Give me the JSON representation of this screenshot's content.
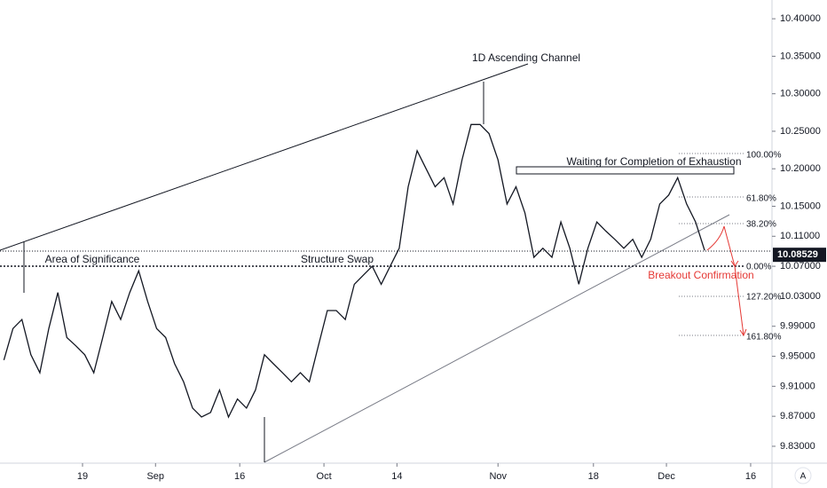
{
  "chart_data": {
    "type": "line",
    "x": [
      5,
      6.6,
      8.2,
      9.8,
      11.4,
      13,
      14.6,
      16.2,
      17.8,
      19.4,
      21,
      22.6,
      24.2,
      25.8,
      27.4,
      29,
      30.6,
      32.2,
      33.8,
      35.4,
      37,
      38.6,
      40.2,
      41.8,
      43.4,
      45,
      46.6,
      48.2,
      49.8,
      51.4,
      53,
      54.6,
      56.2,
      57.8,
      59.4,
      61,
      62.6,
      64.2,
      65.8,
      67.4,
      69,
      70.6,
      72.2,
      73.8,
      75.4,
      77,
      78.6,
      80.2,
      81.8,
      83.4,
      85,
      86.6,
      88.2,
      89.8,
      91.4,
      93,
      94.6,
      96.2,
      97.8,
      99.4,
      101,
      102.6,
      104.2,
      105.8,
      107.4,
      109,
      110.6,
      112.2,
      113.8,
      115.4,
      117,
      118.6,
      120.2,
      121.8,
      123.4,
      125,
      126.6,
      128.2,
      129.8
    ],
    "series": [
      {
        "color": "#131722",
        "values": [
          9.945,
          9.987,
          9.999,
          9.952,
          9.928,
          9.987,
          10.035,
          9.975,
          9.964,
          9.952,
          9.928,
          9.975,
          10.023,
          9.999,
          10.035,
          10.064,
          10.023,
          9.987,
          9.975,
          9.94,
          9.916,
          9.881,
          9.869,
          9.875,
          9.905,
          9.869,
          9.893,
          9.881,
          9.905,
          9.952,
          9.94,
          9.928,
          9.916,
          9.928,
          9.916,
          9.964,
          10.011,
          10.011,
          9.999,
          10.046,
          10.058,
          10.07,
          10.046,
          10.07,
          10.094,
          10.176,
          10.224,
          10.2,
          10.176,
          10.188,
          10.153,
          10.212,
          10.259,
          10.259,
          10.247,
          10.212,
          10.153,
          10.176,
          10.141,
          10.082,
          10.094,
          10.082,
          10.129,
          10.094,
          10.046,
          10.094,
          10.129,
          10.117,
          10.106,
          10.094,
          10.106,
          10.082,
          10.106,
          10.153,
          10.165,
          10.188,
          10.153,
          10.129,
          10.091
        ]
      }
    ],
    "xlim": [
      4.3,
      141.8
    ],
    "xticks": [
      19,
      {
        "value": 32,
        "label": "Sep"
      },
      {
        "value": 47,
        "label": "16"
      },
      {
        "value": 62,
        "label": "Oct"
      },
      {
        "value": 75,
        "label": "14"
      },
      {
        "value": 93,
        "label": "Nov"
      },
      {
        "value": 110,
        "label": "18"
      },
      {
        "value": 123,
        "label": "Dec"
      },
      {
        "value": 138,
        "label": "16"
      }
    ],
    "ylim": [
      9.8075,
      10.425
    ],
    "yticks": [
      {
        "value": 10.4,
        "label": "10.40000"
      },
      {
        "value": 10.35,
        "label": "10.35000"
      },
      {
        "value": 10.3,
        "label": "10.30000"
      },
      {
        "value": 10.25,
        "label": "10.25000"
      },
      {
        "value": 10.2,
        "label": "10.20000"
      },
      {
        "value": 10.15,
        "label": "10.15000"
      },
      {
        "value": 10.11,
        "label": "10.11000"
      },
      {
        "value": 10.07,
        "label": "10.07000"
      },
      {
        "value": 10.03,
        "label": "10.03000"
      },
      {
        "value": 9.99,
        "label": "9.99000"
      },
      {
        "value": 9.95,
        "label": "9.95000"
      },
      {
        "value": 9.91,
        "label": "9.91000"
      },
      {
        "value": 9.87,
        "label": "9.87000"
      },
      {
        "value": 9.83,
        "label": "9.83000"
      }
    ],
    "last_price": 10.08529,
    "annotations": [
      "1D Ascending Channel",
      "Waiting for Completion of Exhaustion",
      "Area of Significance",
      "Structure Swap",
      "Breakout Confirmation"
    ],
    "fib_labels": [
      "100.00%",
      "61.80%",
      "38.20%",
      "0.00%",
      "127.20%",
      "161.80%"
    ],
    "auto_button": "A"
  }
}
